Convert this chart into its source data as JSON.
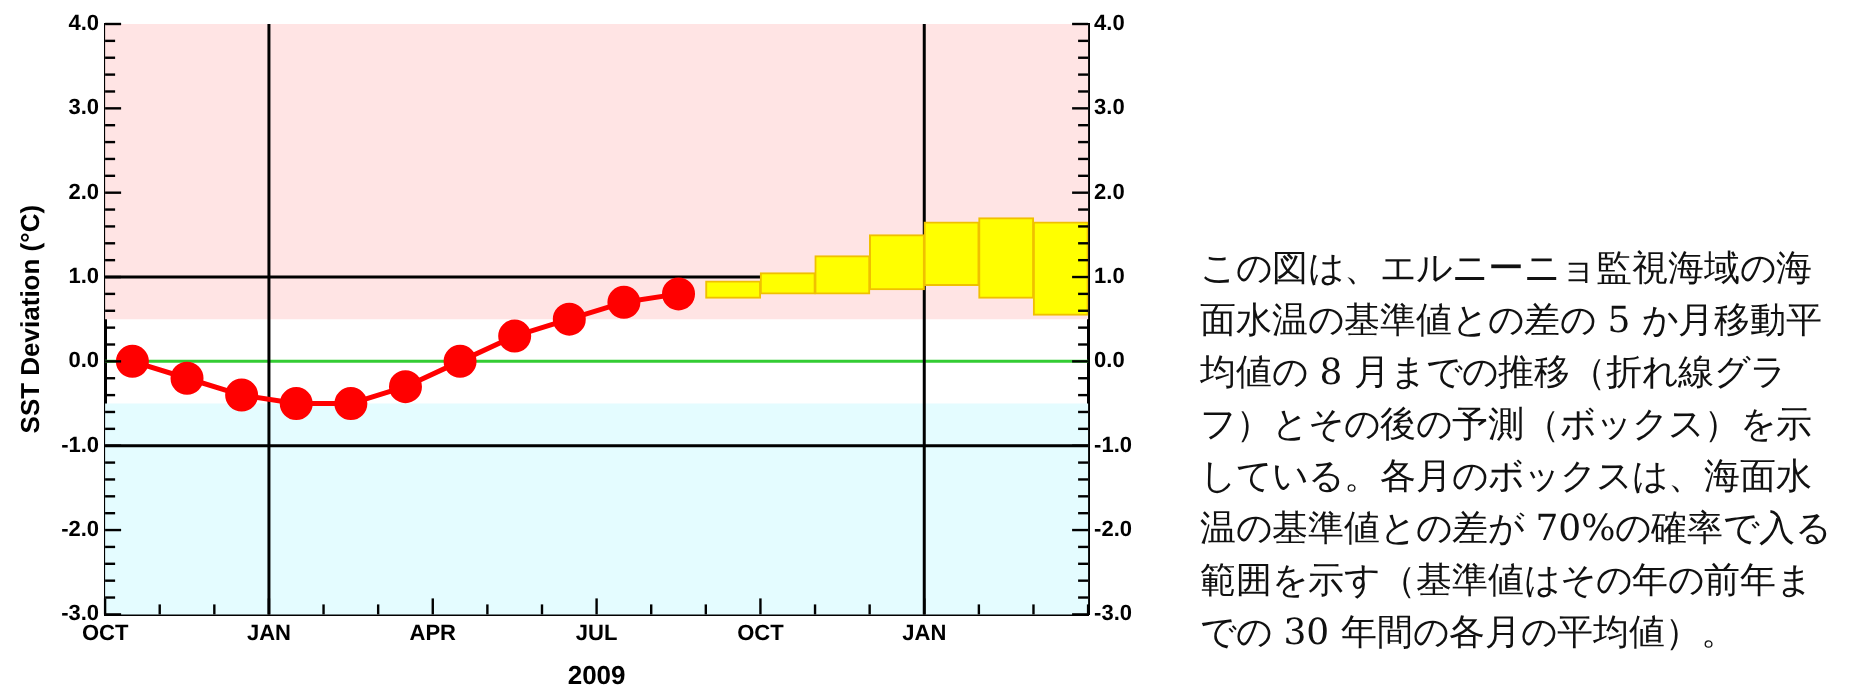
{
  "chart_data": {
    "type": "line",
    "xlabel": "2009",
    "ylabel": "SST Deviation (°C)",
    "xlim": [
      "2008-10",
      "2010-04"
    ],
    "xticks": [
      {
        "value": "2008-10",
        "label": "OCT"
      },
      {
        "value": "2008-11",
        "label": null
      },
      {
        "value": "2008-12",
        "label": null
      },
      {
        "value": "2009-01",
        "label": "JAN"
      },
      {
        "value": "2009-02",
        "label": null
      },
      {
        "value": "2009-03",
        "label": null
      },
      {
        "value": "2009-04",
        "label": "APR"
      },
      {
        "value": "2009-05",
        "label": null
      },
      {
        "value": "2009-06",
        "label": null
      },
      {
        "value": "2009-07",
        "label": "JUL"
      },
      {
        "value": "2009-08",
        "label": null
      },
      {
        "value": "2009-09",
        "label": null
      },
      {
        "value": "2009-10",
        "label": "OCT"
      },
      {
        "value": "2009-11",
        "label": null
      },
      {
        "value": "2009-12",
        "label": null
      },
      {
        "value": "2010-01",
        "label": "JAN"
      },
      {
        "value": "2010-02",
        "label": null
      },
      {
        "value": "2010-03",
        "label": null
      },
      {
        "value": "2010-04",
        "label": null
      }
    ],
    "ylim": [
      -3,
      4
    ],
    "yticks": [
      {
        "value": -3,
        "label": "-3.0"
      },
      {
        "value": -2.8,
        "label": null
      },
      {
        "value": -2.6,
        "label": null
      },
      {
        "value": -2.4,
        "label": null
      },
      {
        "value": -2.2,
        "label": null
      },
      {
        "value": -2,
        "label": "-2.0"
      },
      {
        "value": -1.8,
        "label": null
      },
      {
        "value": -1.6,
        "label": null
      },
      {
        "value": -1.4,
        "label": null
      },
      {
        "value": -1.2,
        "label": null
      },
      {
        "value": -1,
        "label": "-1.0"
      },
      {
        "value": -0.8,
        "label": null
      },
      {
        "value": -0.6,
        "label": null
      },
      {
        "value": -0.4,
        "label": null
      },
      {
        "value": -0.2,
        "label": null
      },
      {
        "value": 0,
        "label": "0.0"
      },
      {
        "value": 0.2,
        "label": null
      },
      {
        "value": 0.4,
        "label": null
      },
      {
        "value": 0.6,
        "label": null
      },
      {
        "value": 0.8,
        "label": null
      },
      {
        "value": 1,
        "label": "1.0"
      },
      {
        "value": 1.2,
        "label": null
      },
      {
        "value": 1.4,
        "label": null
      },
      {
        "value": 1.6,
        "label": null
      },
      {
        "value": 1.8,
        "label": null
      },
      {
        "value": 2,
        "label": "2.0"
      },
      {
        "value": 2.2,
        "label": null
      },
      {
        "value": 2.4,
        "label": null
      },
      {
        "value": 2.6,
        "label": null
      },
      {
        "value": 2.8,
        "label": null
      },
      {
        "value": 3,
        "label": "3.0"
      },
      {
        "value": 3.2,
        "label": null
      },
      {
        "value": 3.4,
        "label": null
      },
      {
        "value": 3.6,
        "label": null
      },
      {
        "value": 3.8,
        "label": null
      },
      {
        "value": 4,
        "label": "4.0"
      }
    ],
    "y2lim": [
      -3,
      4
    ],
    "y2ticks": [
      {
        "value": -3,
        "label": "-3.0"
      },
      {
        "value": -2.8,
        "label": null
      },
      {
        "value": -2.6,
        "label": null
      },
      {
        "value": -2.4,
        "label": null
      },
      {
        "value": -2.2,
        "label": null
      },
      {
        "value": -2,
        "label": "-2.0"
      },
      {
        "value": -1.8,
        "label": null
      },
      {
        "value": -1.6,
        "label": null
      },
      {
        "value": -1.4,
        "label": null
      },
      {
        "value": -1.2,
        "label": null
      },
      {
        "value": -1,
        "label": "-1.0"
      },
      {
        "value": -0.8,
        "label": null
      },
      {
        "value": -0.6,
        "label": null
      },
      {
        "value": -0.4,
        "label": null
      },
      {
        "value": -0.2,
        "label": null
      },
      {
        "value": 0,
        "label": "0.0"
      },
      {
        "value": 0.2,
        "label": null
      },
      {
        "value": 0.4,
        "label": null
      },
      {
        "value": 0.6,
        "label": null
      },
      {
        "value": 0.8,
        "label": null
      },
      {
        "value": 1,
        "label": "1.0"
      },
      {
        "value": 1.2,
        "label": null
      },
      {
        "value": 1.4,
        "label": null
      },
      {
        "value": 1.6,
        "label": null
      },
      {
        "value": 1.8,
        "label": null
      },
      {
        "value": 2,
        "label": "2.0"
      },
      {
        "value": 2.2,
        "label": null
      },
      {
        "value": 2.4,
        "label": null
      },
      {
        "value": 2.6,
        "label": null
      },
      {
        "value": 2.8,
        "label": null
      },
      {
        "value": 3,
        "label": "3.0"
      },
      {
        "value": 3.2,
        "label": null
      },
      {
        "value": 3.4,
        "label": null
      },
      {
        "value": 3.6,
        "label": null
      },
      {
        "value": 3.8,
        "label": null
      },
      {
        "value": 4,
        "label": "4.0"
      }
    ],
    "series": [
      {
        "color": "#ff0000",
        "marker": "circle",
        "line_style": "solid",
        "x": [
          "2008-10-16",
          "2008-11-16",
          "2008-12-16",
          "2009-01-16",
          "2009-02-16",
          "2009-03-16",
          "2009-04-16",
          "2009-05-16",
          "2009-06-16",
          "2009-07-16",
          "2009-08-16"
        ],
        "values": [
          0.0,
          -0.2,
          -0.4,
          -0.5,
          -0.5,
          -0.3,
          0.0,
          0.3,
          0.5,
          0.7,
          0.8
        ]
      },
      {
        "type": "bar",
        "color": "#ffff00",
        "x": [
          "2009-09-16",
          "2009-10-16",
          "2009-11-16",
          "2009-12-16",
          "2010-01-16",
          "2010-02-16",
          "2010-03-16"
        ],
        "base": [
          0.75,
          0.8,
          0.8,
          0.85,
          0.9,
          0.75,
          0.55
        ],
        "values": [
          0.2,
          0.25,
          0.45,
          0.65,
          0.75,
          0.95,
          1.1
        ]
      }
    ],
    "bands": [
      {
        "axis": "y",
        "from": 0.5,
        "to": 4,
        "color": "#ffe4e4"
      },
      {
        "axis": "y",
        "from": -3,
        "to": -0.5,
        "color": "#e4fcff"
      }
    ],
    "ref_lines": [
      {
        "axis": "y",
        "value": 0,
        "color": "#33cc33"
      },
      {
        "axis": "y",
        "value": 1,
        "color": "#000000"
      },
      {
        "axis": "y",
        "value": -1,
        "color": "#000000"
      },
      {
        "axis": "x",
        "value": "2009-01",
        "color": "#000000"
      },
      {
        "axis": "x",
        "value": "2010-01",
        "color": "#000000"
      }
    ],
    "annotations": [
      "この図は、エルニーニョ監視海域の海面水温の基準値との差の 5 か月移動平均値の 8 月までの推移（折れ線グラフ）とその後の予測（ボックス）を示している。各月のボックスは、海面水温の基準値との差が 70%の確率で入る範囲を示す（基準値はその年の前年までの 30 年間の各月の平均値）。"
    ],
    "legend": false,
    "grid": false
  }
}
